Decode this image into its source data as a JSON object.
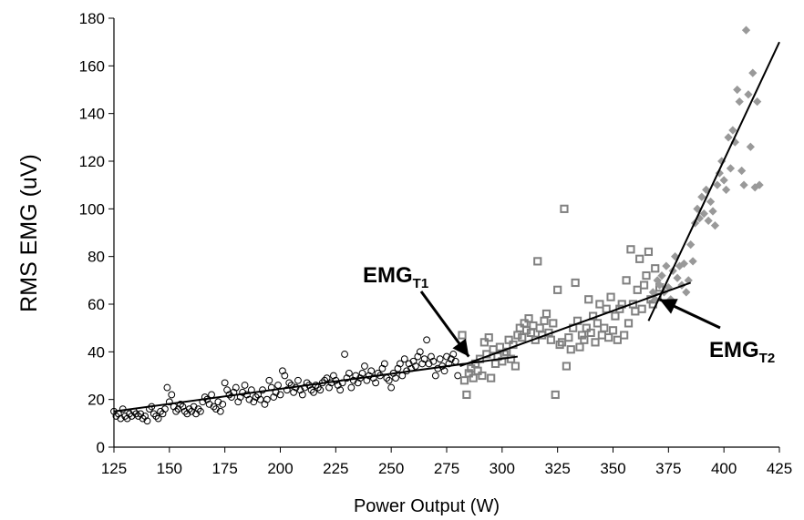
{
  "chart_data": {
    "type": "scatter",
    "title": "",
    "xlabel": "Power  Output  (W)",
    "ylabel": "RMS EMG (uV)",
    "xlim": [
      125,
      425
    ],
    "ylim": [
      0,
      180
    ],
    "xticks": [
      125,
      150,
      175,
      200,
      225,
      250,
      275,
      300,
      325,
      350,
      375,
      400,
      425
    ],
    "yticks": [
      0,
      20,
      40,
      60,
      80,
      100,
      120,
      140,
      160,
      180
    ],
    "grid": false,
    "legend": "none",
    "series": [
      {
        "marker": "circle",
        "color": "#000000",
        "points": [
          [
            125,
            15
          ],
          [
            126,
            13
          ],
          [
            127,
            14
          ],
          [
            128,
            12
          ],
          [
            129,
            16
          ],
          [
            130,
            13
          ],
          [
            131,
            12
          ],
          [
            132,
            14
          ],
          [
            133,
            13
          ],
          [
            134,
            15
          ],
          [
            135,
            14
          ],
          [
            136,
            13
          ],
          [
            137,
            14
          ],
          [
            138,
            12
          ],
          [
            139,
            13
          ],
          [
            140,
            11
          ],
          [
            141,
            16
          ],
          [
            142,
            17
          ],
          [
            143,
            14
          ],
          [
            144,
            13
          ],
          [
            145,
            12
          ],
          [
            146,
            15
          ],
          [
            147,
            14
          ],
          [
            148,
            16
          ],
          [
            149,
            25
          ],
          [
            150,
            19
          ],
          [
            151,
            22
          ],
          [
            152,
            17
          ],
          [
            153,
            15
          ],
          [
            154,
            16
          ],
          [
            155,
            18
          ],
          [
            156,
            17
          ],
          [
            157,
            15
          ],
          [
            158,
            14
          ],
          [
            159,
            16
          ],
          [
            160,
            15
          ],
          [
            161,
            17
          ],
          [
            162,
            14
          ],
          [
            163,
            16
          ],
          [
            164,
            15
          ],
          [
            165,
            19
          ],
          [
            166,
            21
          ],
          [
            167,
            20
          ],
          [
            168,
            18
          ],
          [
            169,
            22
          ],
          [
            170,
            17
          ],
          [
            171,
            16
          ],
          [
            172,
            19
          ],
          [
            173,
            15
          ],
          [
            174,
            18
          ],
          [
            175,
            27
          ],
          [
            176,
            24
          ],
          [
            177,
            22
          ],
          [
            178,
            21
          ],
          [
            179,
            23
          ],
          [
            180,
            25
          ],
          [
            181,
            19
          ],
          [
            182,
            21
          ],
          [
            183,
            23
          ],
          [
            184,
            26
          ],
          [
            185,
            22
          ],
          [
            186,
            20
          ],
          [
            187,
            24
          ],
          [
            188,
            19
          ],
          [
            189,
            21
          ],
          [
            190,
            22
          ],
          [
            191,
            20
          ],
          [
            192,
            24
          ],
          [
            193,
            18
          ],
          [
            194,
            20
          ],
          [
            195,
            28
          ],
          [
            196,
            25
          ],
          [
            197,
            21
          ],
          [
            198,
            23
          ],
          [
            199,
            26
          ],
          [
            200,
            22
          ],
          [
            201,
            32
          ],
          [
            202,
            30
          ],
          [
            203,
            24
          ],
          [
            204,
            27
          ],
          [
            205,
            26
          ],
          [
            206,
            23
          ],
          [
            207,
            25
          ],
          [
            208,
            28
          ],
          [
            209,
            24
          ],
          [
            210,
            22
          ],
          [
            211,
            25
          ],
          [
            212,
            27
          ],
          [
            213,
            26
          ],
          [
            214,
            24
          ],
          [
            215,
            23
          ],
          [
            216,
            26
          ],
          [
            217,
            25
          ],
          [
            218,
            24
          ],
          [
            219,
            27
          ],
          [
            220,
            28
          ],
          [
            221,
            29
          ],
          [
            222,
            25
          ],
          [
            223,
            27
          ],
          [
            224,
            30
          ],
          [
            225,
            28
          ],
          [
            226,
            26
          ],
          [
            227,
            24
          ],
          [
            228,
            27
          ],
          [
            229,
            39
          ],
          [
            230,
            29
          ],
          [
            231,
            31
          ],
          [
            232,
            25
          ],
          [
            233,
            28
          ],
          [
            234,
            30
          ],
          [
            235,
            27
          ],
          [
            236,
            29
          ],
          [
            237,
            31
          ],
          [
            238,
            34
          ],
          [
            239,
            28
          ],
          [
            240,
            30
          ],
          [
            241,
            32
          ],
          [
            242,
            29
          ],
          [
            243,
            27
          ],
          [
            244,
            31
          ],
          [
            245,
            30
          ],
          [
            246,
            33
          ],
          [
            247,
            35
          ],
          [
            248,
            29
          ],
          [
            249,
            28
          ],
          [
            250,
            25
          ],
          [
            251,
            31
          ],
          [
            252,
            29
          ],
          [
            253,
            33
          ],
          [
            254,
            35
          ],
          [
            255,
            30
          ],
          [
            256,
            37
          ],
          [
            257,
            32
          ],
          [
            258,
            35
          ],
          [
            259,
            33
          ],
          [
            260,
            36
          ],
          [
            261,
            34
          ],
          [
            262,
            38
          ],
          [
            263,
            40
          ],
          [
            264,
            35
          ],
          [
            265,
            37
          ],
          [
            266,
            45
          ],
          [
            267,
            35
          ],
          [
            268,
            38
          ],
          [
            269,
            36
          ],
          [
            270,
            30
          ],
          [
            271,
            33
          ],
          [
            272,
            37
          ],
          [
            273,
            34
          ],
          [
            274,
            32
          ],
          [
            275,
            38
          ],
          [
            276,
            35
          ],
          [
            277,
            37
          ],
          [
            278,
            39
          ],
          [
            279,
            36
          ],
          [
            280,
            30
          ]
        ]
      },
      {
        "marker": "square",
        "color": "#808080",
        "points": [
          [
            282,
            47
          ],
          [
            283,
            28
          ],
          [
            284,
            22
          ],
          [
            285,
            31
          ],
          [
            286,
            33
          ],
          [
            287,
            29
          ],
          [
            288,
            35
          ],
          [
            289,
            32
          ],
          [
            290,
            37
          ],
          [
            291,
            30
          ],
          [
            292,
            44
          ],
          [
            293,
            39
          ],
          [
            294,
            46
          ],
          [
            295,
            29
          ],
          [
            296,
            41
          ],
          [
            297,
            35
          ],
          [
            298,
            38
          ],
          [
            299,
            42
          ],
          [
            300,
            36
          ],
          [
            301,
            39
          ],
          [
            302,
            40
          ],
          [
            303,
            45
          ],
          [
            304,
            37
          ],
          [
            305,
            43
          ],
          [
            306,
            34
          ],
          [
            307,
            47
          ],
          [
            308,
            50
          ],
          [
            309,
            46
          ],
          [
            310,
            52
          ],
          [
            311,
            49
          ],
          [
            312,
            54
          ],
          [
            313,
            48
          ],
          [
            314,
            51
          ],
          [
            315,
            45
          ],
          [
            316,
            78
          ],
          [
            317,
            50
          ],
          [
            318,
            47
          ],
          [
            319,
            53
          ],
          [
            320,
            56
          ],
          [
            321,
            48
          ],
          [
            322,
            45
          ],
          [
            323,
            52
          ],
          [
            324,
            22
          ],
          [
            325,
            66
          ],
          [
            326,
            43
          ],
          [
            327,
            44
          ],
          [
            328,
            100
          ],
          [
            329,
            34
          ],
          [
            330,
            46
          ],
          [
            331,
            41
          ],
          [
            332,
            50
          ],
          [
            333,
            69
          ],
          [
            334,
            53
          ],
          [
            335,
            42
          ],
          [
            336,
            47
          ],
          [
            337,
            45
          ],
          [
            338,
            50
          ],
          [
            339,
            62
          ],
          [
            340,
            48
          ],
          [
            341,
            55
          ],
          [
            342,
            44
          ],
          [
            343,
            52
          ],
          [
            344,
            60
          ],
          [
            345,
            47
          ],
          [
            346,
            50
          ],
          [
            347,
            58
          ],
          [
            348,
            46
          ],
          [
            349,
            63
          ],
          [
            350,
            49
          ],
          [
            351,
            55
          ],
          [
            352,
            45
          ],
          [
            353,
            58
          ],
          [
            354,
            60
          ],
          [
            355,
            47
          ],
          [
            356,
            70
          ],
          [
            357,
            52
          ],
          [
            358,
            83
          ],
          [
            359,
            60
          ],
          [
            360,
            57
          ],
          [
            361,
            66
          ],
          [
            362,
            79
          ],
          [
            363,
            58
          ],
          [
            364,
            68
          ],
          [
            365,
            72
          ],
          [
            366,
            82
          ],
          [
            367,
            62
          ],
          [
            368,
            60
          ],
          [
            369,
            75
          ],
          [
            370,
            63
          ],
          [
            371,
            67
          ]
        ]
      },
      {
        "marker": "diamond",
        "color": "#999999",
        "points": [
          [
            368,
            65
          ],
          [
            369,
            62
          ],
          [
            370,
            70
          ],
          [
            371,
            68
          ],
          [
            372,
            72
          ],
          [
            373,
            65
          ],
          [
            374,
            76
          ],
          [
            375,
            67
          ],
          [
            376,
            62
          ],
          [
            377,
            74
          ],
          [
            378,
            80
          ],
          [
            379,
            71
          ],
          [
            380,
            76
          ],
          [
            381,
            68
          ],
          [
            382,
            77
          ],
          [
            383,
            65
          ],
          [
            384,
            70
          ],
          [
            385,
            85
          ],
          [
            386,
            78
          ],
          [
            387,
            94
          ],
          [
            388,
            100
          ],
          [
            389,
            96
          ],
          [
            390,
            105
          ],
          [
            391,
            98
          ],
          [
            392,
            108
          ],
          [
            393,
            95
          ],
          [
            394,
            103
          ],
          [
            395,
            99
          ],
          [
            396,
            93
          ],
          [
            397,
            110
          ],
          [
            398,
            115
          ],
          [
            399,
            120
          ],
          [
            400,
            112
          ],
          [
            401,
            108
          ],
          [
            402,
            130
          ],
          [
            403,
            117
          ],
          [
            404,
            133
          ],
          [
            405,
            128
          ],
          [
            406,
            150
          ],
          [
            407,
            145
          ],
          [
            408,
            116
          ],
          [
            409,
            110
          ],
          [
            410,
            175
          ],
          [
            411,
            148
          ],
          [
            412,
            126
          ],
          [
            413,
            157
          ],
          [
            414,
            109
          ],
          [
            415,
            145
          ],
          [
            416,
            110
          ]
        ]
      }
    ],
    "fit_lines": [
      [
        [
          125,
          15
        ],
        [
          307,
          38
        ]
      ],
      [
        [
          281,
          34
        ],
        [
          385,
          69
        ]
      ],
      [
        [
          366,
          53
        ],
        [
          425,
          170
        ]
      ]
    ],
    "annotations": [
      {
        "text": "EMG",
        "subscript": "T1",
        "arrow_to": [
          285,
          38
        ]
      },
      {
        "text": "EMG",
        "subscript": "T2",
        "arrow_to": [
          371,
          62
        ]
      }
    ]
  }
}
